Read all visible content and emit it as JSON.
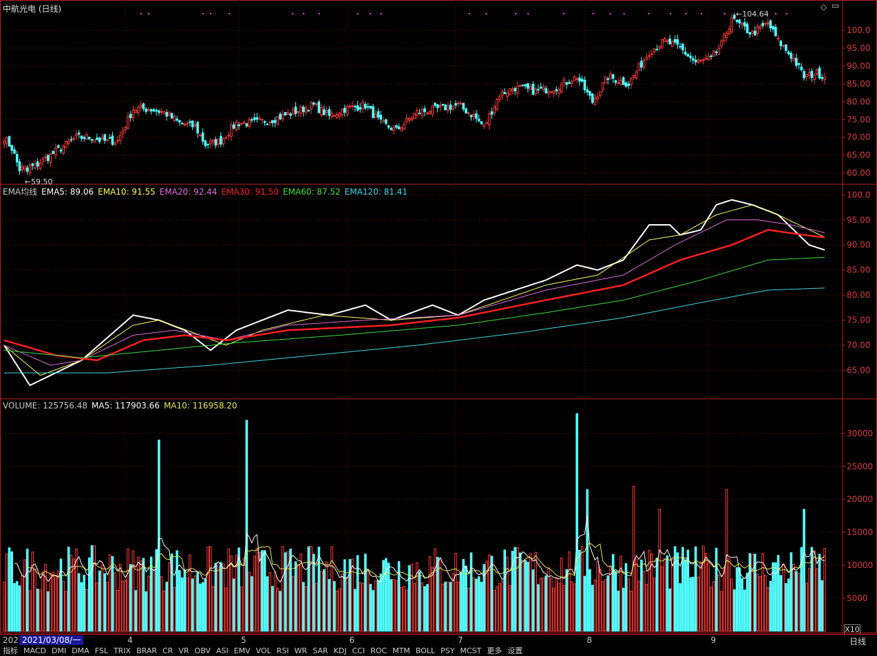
{
  "title": "中航光电 (日线)",
  "period_label": "日线",
  "x10_label": "X10",
  "year_label": "202",
  "date_box": "2021/03/08/一",
  "month_ticks": [
    {
      "label": "4",
      "day": 47
    },
    {
      "label": "5",
      "day": 91
    },
    {
      "label": "6",
      "day": 133
    },
    {
      "label": "7",
      "day": 175
    },
    {
      "label": "8",
      "day": 225
    },
    {
      "label": "9",
      "day": 273
    }
  ],
  "tabs": [
    "指标",
    "MACD",
    "DMI",
    "DMA",
    "FSL",
    "TRIX",
    "BRAR",
    "CR",
    "VR",
    "OBV",
    "ASI",
    "EMV",
    "VOL",
    "RSI",
    "WR",
    "SAR",
    "KDJ",
    "CCI",
    "ROC",
    "MTM",
    "BOLL",
    "PSY",
    "MCST",
    "更多",
    "设置"
  ],
  "colors": {
    "up": "#ff3c3c",
    "down": "#54ffff",
    "ema5": "#ffffff",
    "ema10": "#ffff66",
    "ema20": "#e070e0",
    "ema30": "#ff2020",
    "ema60": "#40e040",
    "ema120": "#40d8e8",
    "ma5": "#ffffff",
    "ma10": "#e8e860",
    "frame": "#c02020"
  },
  "price_panel": {
    "high_label": "104.64",
    "low_label": "59.50",
    "y_ticks": [
      "100.0",
      "95.00",
      "90.00",
      "85.00",
      "80.00",
      "75.00",
      "70.00",
      "65.00",
      "60.00"
    ]
  },
  "ema_panel": {
    "header": [
      {
        "text": "EMA均线",
        "color": "#c8c8c8"
      },
      {
        "text": "EMA5: 89.06",
        "color": "#ffffff"
      },
      {
        "text": "EMA10: 91.55",
        "color": "#ffff66"
      },
      {
        "text": "EMA20: 92.44",
        "color": "#e070e0"
      },
      {
        "text": "EMA30: 91.50",
        "color": "#ff2020"
      },
      {
        "text": "EMA60: 87.52",
        "color": "#40e040"
      },
      {
        "text": "EMA120: 81.41",
        "color": "#40d8e8"
      }
    ],
    "y_ticks": [
      "100.0",
      "95.00",
      "90.00",
      "85.00",
      "80.00",
      "75.00",
      "70.00",
      "65.00"
    ]
  },
  "volume_panel": {
    "header": [
      {
        "text": "VOLUME: 125756.48",
        "color": "#c8c8c8"
      },
      {
        "text": "MA5: 117903.66",
        "color": "#ffffff"
      },
      {
        "text": "MA10: 116958.20",
        "color": "#e8e860"
      }
    ],
    "y_ticks": [
      "30000",
      "25000",
      "20000",
      "15000",
      "10000",
      "5000"
    ]
  },
  "chart_data": {
    "type": "candlestick",
    "title": "中航光电 (日线)",
    "x_months": [
      "4",
      "5",
      "6",
      "7",
      "8",
      "9"
    ],
    "price_range": [
      58,
      104.64
    ],
    "price_extremes": {
      "high": 104.64,
      "low": 59.5
    },
    "close_keypoints": [
      [
        0,
        70
      ],
      [
        3,
        67
      ],
      [
        6,
        61
      ],
      [
        12,
        62
      ],
      [
        20,
        66
      ],
      [
        28,
        70
      ],
      [
        34,
        70
      ],
      [
        38,
        69
      ],
      [
        44,
        69
      ],
      [
        50,
        78
      ],
      [
        56,
        78
      ],
      [
        62,
        77
      ],
      [
        68,
        74
      ],
      [
        74,
        73
      ],
      [
        78,
        68
      ],
      [
        84,
        69
      ],
      [
        90,
        74
      ],
      [
        96,
        74
      ],
      [
        104,
        75
      ],
      [
        112,
        77
      ],
      [
        120,
        79
      ],
      [
        126,
        76
      ],
      [
        132,
        78
      ],
      [
        140,
        79
      ],
      [
        146,
        74
      ],
      [
        152,
        72
      ],
      [
        160,
        77
      ],
      [
        168,
        78
      ],
      [
        176,
        79
      ],
      [
        182,
        76
      ],
      [
        186,
        73
      ],
      [
        192,
        82
      ],
      [
        198,
        84
      ],
      [
        206,
        83
      ],
      [
        214,
        84
      ],
      [
        222,
        87
      ],
      [
        228,
        80
      ],
      [
        234,
        87
      ],
      [
        242,
        85
      ],
      [
        250,
        94
      ],
      [
        256,
        97
      ],
      [
        262,
        95
      ],
      [
        268,
        91
      ],
      [
        274,
        92
      ],
      [
        278,
        96
      ],
      [
        282,
        103
      ],
      [
        286,
        101
      ],
      [
        290,
        99
      ],
      [
        296,
        102
      ],
      [
        300,
        97
      ],
      [
        306,
        92
      ],
      [
        310,
        87
      ],
      [
        315,
        88
      ],
      [
        318,
        87
      ]
    ],
    "ema_series": [
      {
        "name": "EMA5",
        "last": 89.06,
        "keypoints": [
          [
            0,
            70
          ],
          [
            10,
            62
          ],
          [
            30,
            67
          ],
          [
            50,
            76
          ],
          [
            60,
            75
          ],
          [
            70,
            73
          ],
          [
            80,
            69
          ],
          [
            90,
            73
          ],
          [
            110,
            77
          ],
          [
            126,
            76
          ],
          [
            140,
            78
          ],
          [
            150,
            75
          ],
          [
            166,
            78
          ],
          [
            176,
            76
          ],
          [
            186,
            79
          ],
          [
            210,
            83
          ],
          [
            222,
            86
          ],
          [
            230,
            85
          ],
          [
            240,
            87
          ],
          [
            250,
            94
          ],
          [
            258,
            94
          ],
          [
            262,
            92
          ],
          [
            270,
            93
          ],
          [
            276,
            98
          ],
          [
            282,
            99
          ],
          [
            290,
            98
          ],
          [
            300,
            96
          ],
          [
            312,
            90
          ],
          [
            318,
            89
          ]
        ]
      },
      {
        "name": "EMA10",
        "last": 91.55,
        "keypoints": [
          [
            0,
            70
          ],
          [
            14,
            64
          ],
          [
            30,
            67
          ],
          [
            50,
            74
          ],
          [
            60,
            75
          ],
          [
            76,
            72
          ],
          [
            86,
            70
          ],
          [
            100,
            73
          ],
          [
            124,
            76
          ],
          [
            150,
            75
          ],
          [
            176,
            76
          ],
          [
            210,
            82
          ],
          [
            230,
            84
          ],
          [
            250,
            91
          ],
          [
            262,
            92
          ],
          [
            276,
            96
          ],
          [
            290,
            98
          ],
          [
            300,
            96
          ],
          [
            318,
            91.55
          ]
        ]
      },
      {
        "name": "EMA20",
        "last": 92.44,
        "keypoints": [
          [
            0,
            70
          ],
          [
            18,
            66
          ],
          [
            30,
            67
          ],
          [
            50,
            72
          ],
          [
            66,
            73
          ],
          [
            86,
            71
          ],
          [
            110,
            74
          ],
          [
            140,
            75
          ],
          [
            176,
            76
          ],
          [
            210,
            81
          ],
          [
            240,
            84
          ],
          [
            260,
            90
          ],
          [
            280,
            95
          ],
          [
            292,
            95
          ],
          [
            305,
            94
          ],
          [
            318,
            92.44
          ]
        ]
      },
      {
        "name": "EMA30",
        "last": 91.5,
        "keypoints": [
          [
            0,
            71
          ],
          [
            20,
            68
          ],
          [
            36,
            67
          ],
          [
            54,
            71
          ],
          [
            70,
            72
          ],
          [
            86,
            71
          ],
          [
            110,
            73
          ],
          [
            150,
            74
          ],
          [
            176,
            75.5
          ],
          [
            210,
            79
          ],
          [
            240,
            82
          ],
          [
            262,
            87
          ],
          [
            282,
            90
          ],
          [
            296,
            93
          ],
          [
            310,
            92
          ],
          [
            318,
            91.5
          ]
        ]
      },
      {
        "name": "EMA60",
        "last": 87.52,
        "keypoints": [
          [
            0,
            69
          ],
          [
            30,
            67.5
          ],
          [
            60,
            69
          ],
          [
            90,
            70.5
          ],
          [
            130,
            72
          ],
          [
            176,
            74
          ],
          [
            210,
            76.5
          ],
          [
            240,
            79
          ],
          [
            270,
            83
          ],
          [
            296,
            87
          ],
          [
            318,
            87.52
          ]
        ]
      },
      {
        "name": "EMA120",
        "last": 81.41,
        "keypoints": [
          [
            0,
            64.5
          ],
          [
            40,
            64.5
          ],
          [
            80,
            66
          ],
          [
            120,
            68
          ],
          [
            160,
            70
          ],
          [
            200,
            72.5
          ],
          [
            240,
            75.5
          ],
          [
            270,
            78.5
          ],
          [
            296,
            81
          ],
          [
            318,
            81.41
          ]
        ]
      }
    ],
    "volume": {
      "last": 125756.48,
      "ma5": 117903.66,
      "ma10": 116958.2,
      "y_max": 34000,
      "spikes": [
        [
          60,
          29000
        ],
        [
          94,
          32000
        ],
        [
          222,
          33000
        ],
        [
          226,
          21500
        ],
        [
          244,
          22000
        ],
        [
          254,
          18500
        ],
        [
          280,
          21500
        ],
        [
          310,
          18500
        ]
      ]
    }
  }
}
